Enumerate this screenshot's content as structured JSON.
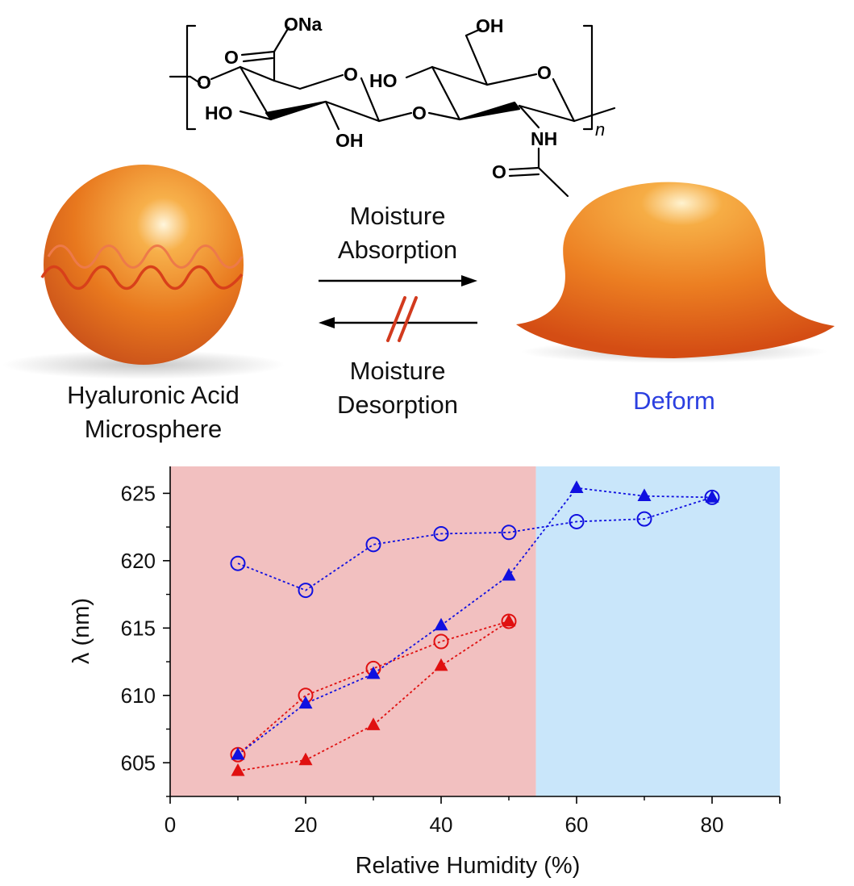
{
  "structure": {
    "atoms": {
      "ona": "ONa",
      "o_carbonyl": "O",
      "o_link_left": "O",
      "ho_left": "HO",
      "o_ring1": "O",
      "oh_bottom": "OH",
      "o_glyco": "O",
      "ho_mid": "HO",
      "oh_top": "OH",
      "o_ring2": "O",
      "nh": "NH",
      "o_amide": "O",
      "repeat_n": "n"
    }
  },
  "scheme": {
    "left_label_line1": "Hyaluronic Acid",
    "left_label_line2": "Microsphere",
    "forward_line1": "Moisture",
    "forward_line2": "Absorption",
    "reverse_line1": "Moisture",
    "reverse_line2": "Desorption",
    "right_label": "Deform",
    "colors": {
      "sphere": "#e8781e",
      "deform_label": "#2b3fe0",
      "block_mark": "#d23a1e"
    }
  },
  "chart_data": {
    "type": "scatter",
    "xlabel": "Relative Humidity (%)",
    "ylabel": "λ (nm)",
    "xlim": [
      0,
      90
    ],
    "ylim": [
      602.5,
      627
    ],
    "x_ticks": [
      0,
      20,
      40,
      60,
      80
    ],
    "y_ticks": [
      605,
      610,
      615,
      620,
      625
    ],
    "x_tick_labels": [
      "0",
      "20",
      "40",
      "60",
      "80"
    ],
    "y_tick_labels": [
      "605",
      "610",
      "615",
      "620",
      "625"
    ],
    "regions": [
      {
        "x0": 0,
        "x1": 54,
        "color": "#f2c0c0"
      },
      {
        "x0": 54,
        "x1": 90,
        "color": "#c9e6fa"
      }
    ],
    "series": [
      {
        "color": "#e01010",
        "marker": "open-circle",
        "x": [
          10,
          20,
          30,
          40,
          50
        ],
        "y": [
          605.6,
          610.0,
          612.0,
          614.0,
          615.5
        ]
      },
      {
        "color": "#e01010",
        "marker": "filled-triangle",
        "x": [
          10,
          20,
          30,
          40,
          50
        ],
        "y": [
          604.4,
          605.2,
          607.8,
          612.2,
          615.5
        ]
      },
      {
        "color": "#1010e0",
        "marker": "open-circle",
        "x": [
          10,
          20,
          30,
          40,
          50,
          60,
          70,
          80
        ],
        "y": [
          619.8,
          617.8,
          621.2,
          622.0,
          622.1,
          622.9,
          623.1,
          624.7
        ]
      },
      {
        "color": "#1010e0",
        "marker": "filled-triangle",
        "x": [
          10,
          20,
          30,
          40,
          50,
          60,
          70,
          80
        ],
        "y": [
          605.6,
          609.4,
          611.6,
          615.2,
          618.9,
          625.4,
          624.8,
          624.7
        ]
      }
    ]
  }
}
